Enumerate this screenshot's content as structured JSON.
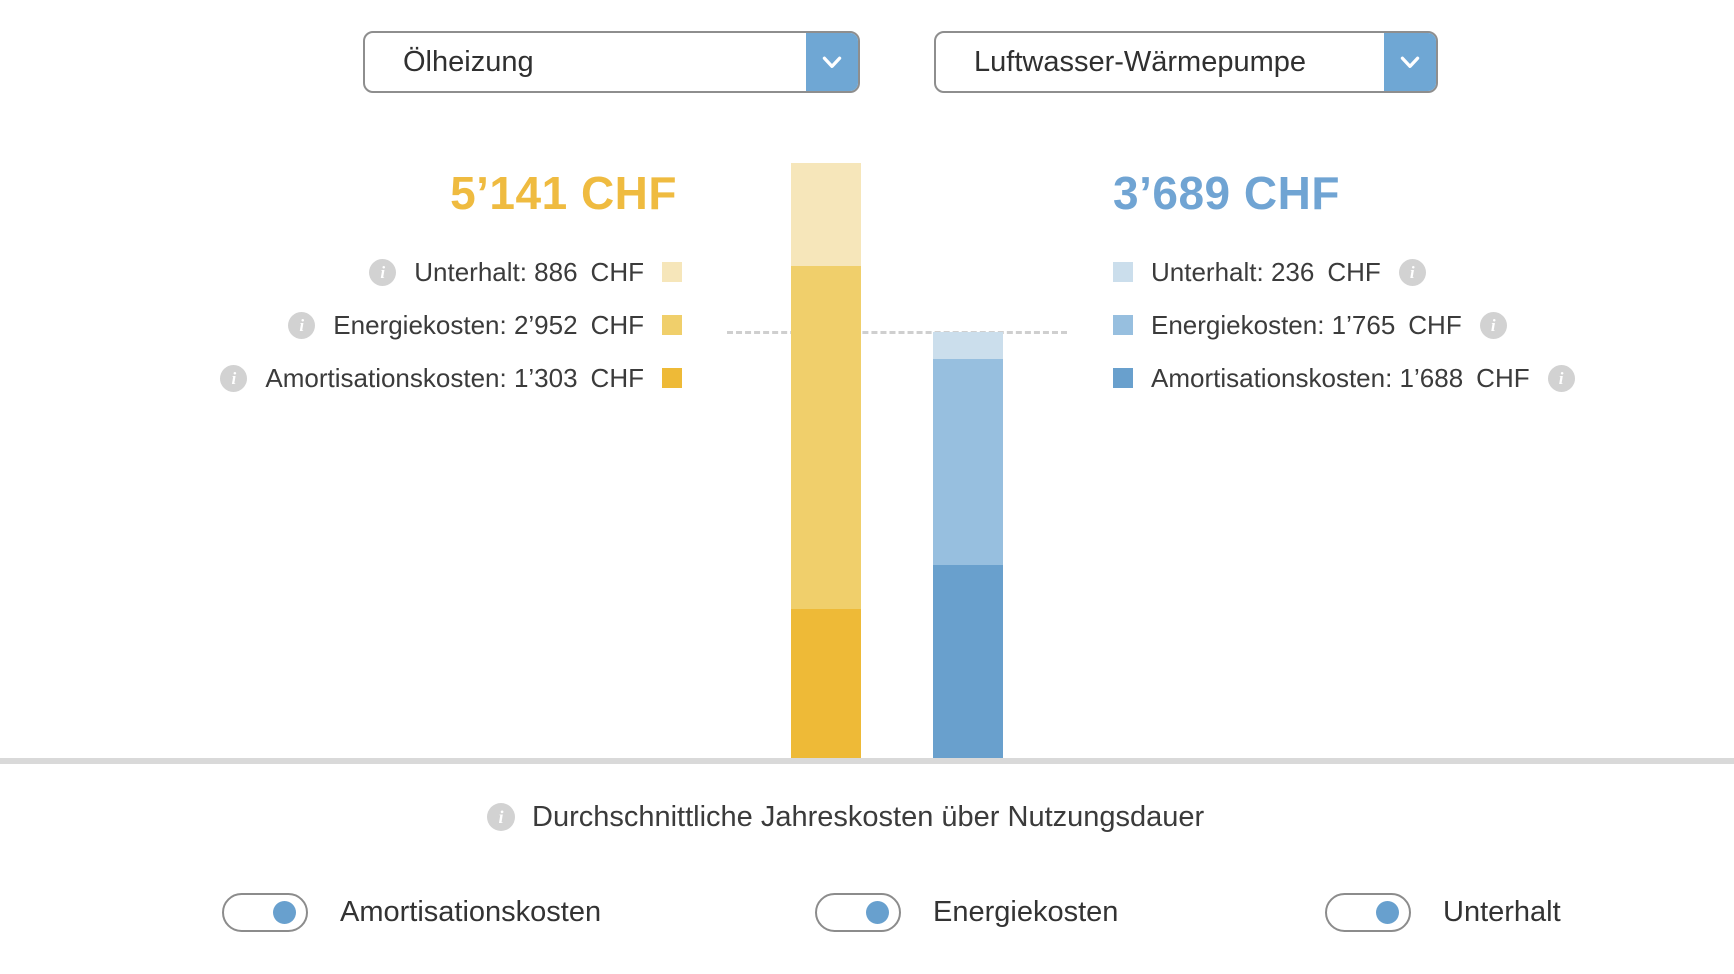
{
  "colors": {
    "accent_yellow": "#efbb40",
    "accent_blue": "#70a4d3",
    "dropdown_button": "#6fa7d4",
    "dashed_line": "#cfcfcf",
    "baseline": "#d9d9d9",
    "toggle_knob": "#68a0ce",
    "info_icon_bg": "#d2d2d2"
  },
  "selectors": {
    "left": {
      "value": "Ölheizung"
    },
    "right": {
      "value": "Luftwasser-Wärmepumpe"
    }
  },
  "chart_data": {
    "type": "bar",
    "stacked": true,
    "unit": "CHF",
    "title": "Durchschnittliche Jahreskosten über Nutzungsdauer",
    "legend_position": "flanking",
    "comparison_line_at": 3689,
    "bars": [
      {
        "name": "Ölheizung",
        "total": 5141,
        "total_label": "5’141 CHF",
        "accent": "#efbb40",
        "segments": [
          {
            "label": "Unterhalt",
            "value": 886,
            "value_label": "886",
            "color": "#f6e6ba"
          },
          {
            "label": "Energiekosten",
            "value": 2952,
            "value_label": "2’952",
            "color": "#f0cf6b"
          },
          {
            "label": "Amortisationskosten",
            "value": 1303,
            "value_label": "1’303",
            "color": "#eeba37"
          }
        ]
      },
      {
        "name": "Luftwasser-Wärmepumpe",
        "total": 3689,
        "total_label": "3’689 CHF",
        "accent": "#70a4d3",
        "segments": [
          {
            "label": "Unterhalt",
            "value": 236,
            "value_label": "236",
            "color": "#cbdeec"
          },
          {
            "label": "Energiekosten",
            "value": 1765,
            "value_label": "1’765",
            "color": "#97bfdf"
          },
          {
            "label": "Amortisationskosten",
            "value": 1688,
            "value_label": "1’688",
            "color": "#69a0cd"
          }
        ]
      }
    ]
  },
  "footer": {
    "note": "Durchschnittliche Jahreskosten über Nutzungsdauer",
    "toggles": [
      {
        "label": "Amortisationskosten",
        "on": true
      },
      {
        "label": "Energiekosten",
        "on": true
      },
      {
        "label": "Unterhalt",
        "on": true
      }
    ]
  }
}
